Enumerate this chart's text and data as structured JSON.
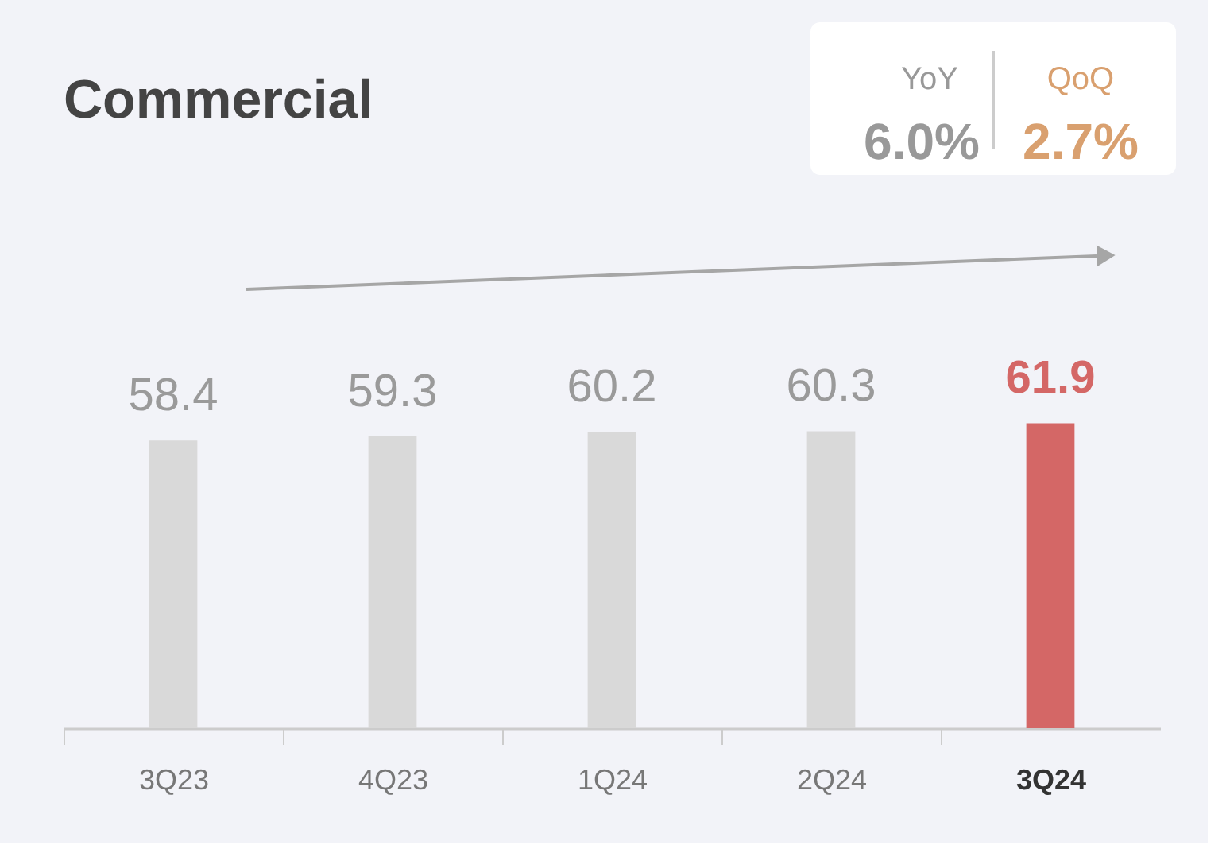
{
  "chart_data": {
    "type": "bar",
    "title": "Commercial",
    "categories": [
      "3Q23",
      "4Q23",
      "1Q24",
      "2Q24",
      "3Q24"
    ],
    "values": [
      58.4,
      59.3,
      60.2,
      60.3,
      61.9
    ],
    "colors": [
      "#d9d9d9",
      "#d9d9d9",
      "#d9d9d9",
      "#d9d9d9",
      "#d46766"
    ],
    "data_labels": true,
    "annotations": [
      "YoY",
      "6.0%",
      "QoQ",
      "2.7%"
    ],
    "grid": false
  }
}
